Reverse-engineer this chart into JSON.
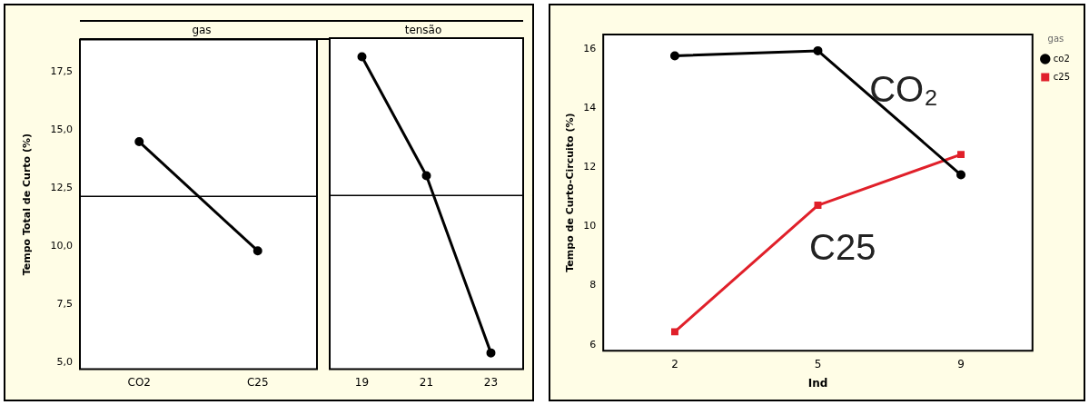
{
  "chart_data": [
    {
      "type": "line",
      "title": "gas",
      "ylabel": "Tempo Total de Curto (%)",
      "categories": [
        "CO2",
        "C25"
      ],
      "values": [
        14.5,
        9.8
      ],
      "color": "#000000",
      "ylim": [
        4.7,
        18.9
      ],
      "yticks": [
        {
          "value": 5,
          "label": "5,0"
        },
        {
          "value": 7.5,
          "label": "7,5"
        },
        {
          "value": 10,
          "label": "10,0"
        },
        {
          "value": 12.5,
          "label": "12,5"
        },
        {
          "value": 15,
          "label": "15,0"
        },
        {
          "value": 17.5,
          "label": "17,5"
        }
      ],
      "ref_lines": [
        {
          "axis": "y",
          "value": 12.15
        }
      ],
      "marker": "circle"
    },
    {
      "type": "line",
      "title": "tensão",
      "categories": [
        "19",
        "21",
        "23"
      ],
      "values": [
        18.1,
        13.0,
        5.4
      ],
      "color": "#000000",
      "ylim": [
        4.7,
        18.9
      ],
      "tick_labels": "x",
      "ref_lines": [
        {
          "axis": "y",
          "value": 12.15
        }
      ],
      "marker": "circle"
    },
    {
      "type": "line",
      "xlabel": "Ind",
      "ylabel": "Tempo de Curto-Circuito (%)",
      "legend_title": "gas",
      "legend": "top right",
      "categories": [
        "2",
        "5",
        "9"
      ],
      "series": [
        {
          "name": "co2",
          "color": "#000000",
          "values": [
            15.78,
            15.95,
            11.75
          ],
          "marker": "circle"
        },
        {
          "name": "c25",
          "color": "#e0202a",
          "values": [
            6.44,
            10.72,
            12.44
          ],
          "marker": "square"
        }
      ],
      "ylim": [
        5.8,
        16.5
      ],
      "yticks": [
        6,
        8,
        10,
        12,
        14,
        16
      ],
      "annotations": [
        "CO₂",
        "C25"
      ]
    }
  ]
}
